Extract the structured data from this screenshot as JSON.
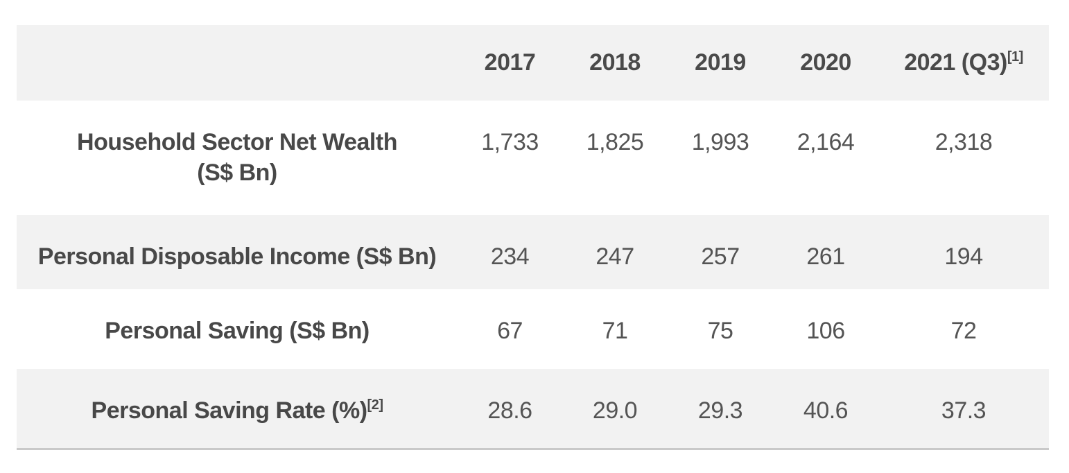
{
  "colors": {
    "stripe_background": "#f2f2f2",
    "text": "#4a4a4a",
    "bottom_border": "#c9c9c9",
    "page_background": "#ffffff"
  },
  "table": {
    "columns": [
      {
        "label": "",
        "sup": ""
      },
      {
        "label": "2017",
        "sup": ""
      },
      {
        "label": "2018",
        "sup": ""
      },
      {
        "label": "2019",
        "sup": ""
      },
      {
        "label": "2020",
        "sup": ""
      },
      {
        "label": "2021 (Q3)",
        "sup": "[1]"
      }
    ],
    "rows": [
      {
        "label": "Household Sector Net Wealth\n(S$ Bn)",
        "sup": "",
        "values": [
          "1,733",
          "1,825",
          "1,993",
          "2,164",
          "2,318"
        ]
      },
      {
        "label": "Personal Disposable Income (S$ Bn)",
        "sup": "",
        "values": [
          "234",
          "247",
          "257",
          "261",
          "194"
        ]
      },
      {
        "label": "Personal Saving (S$ Bn)",
        "sup": "",
        "values": [
          "67",
          "71",
          "75",
          "106",
          "72"
        ]
      },
      {
        "label": "Personal Saving Rate (%)",
        "sup": "[2]",
        "values": [
          "28.6",
          "29.0",
          "29.3",
          "40.6",
          "37.3"
        ]
      }
    ]
  },
  "chart_data": {
    "type": "table",
    "title": "",
    "categories": [
      "2017",
      "2018",
      "2019",
      "2020",
      "2021 (Q3)"
    ],
    "series": [
      {
        "name": "Household Sector Net Wealth (S$ Bn)",
        "values": [
          1733,
          1825,
          1993,
          2164,
          2318
        ]
      },
      {
        "name": "Personal Disposable Income (S$ Bn)",
        "values": [
          234,
          247,
          257,
          261,
          194
        ]
      },
      {
        "name": "Personal Saving (S$ Bn)",
        "values": [
          67,
          71,
          75,
          106,
          72
        ]
      },
      {
        "name": "Personal Saving Rate (%)",
        "values": [
          28.6,
          29.0,
          29.3,
          40.6,
          37.3
        ]
      }
    ],
    "footnote_markers": [
      "[1]",
      "[2]"
    ],
    "layout": {
      "striped_rows": true,
      "header_position": "top",
      "label_column_position": "left"
    }
  }
}
